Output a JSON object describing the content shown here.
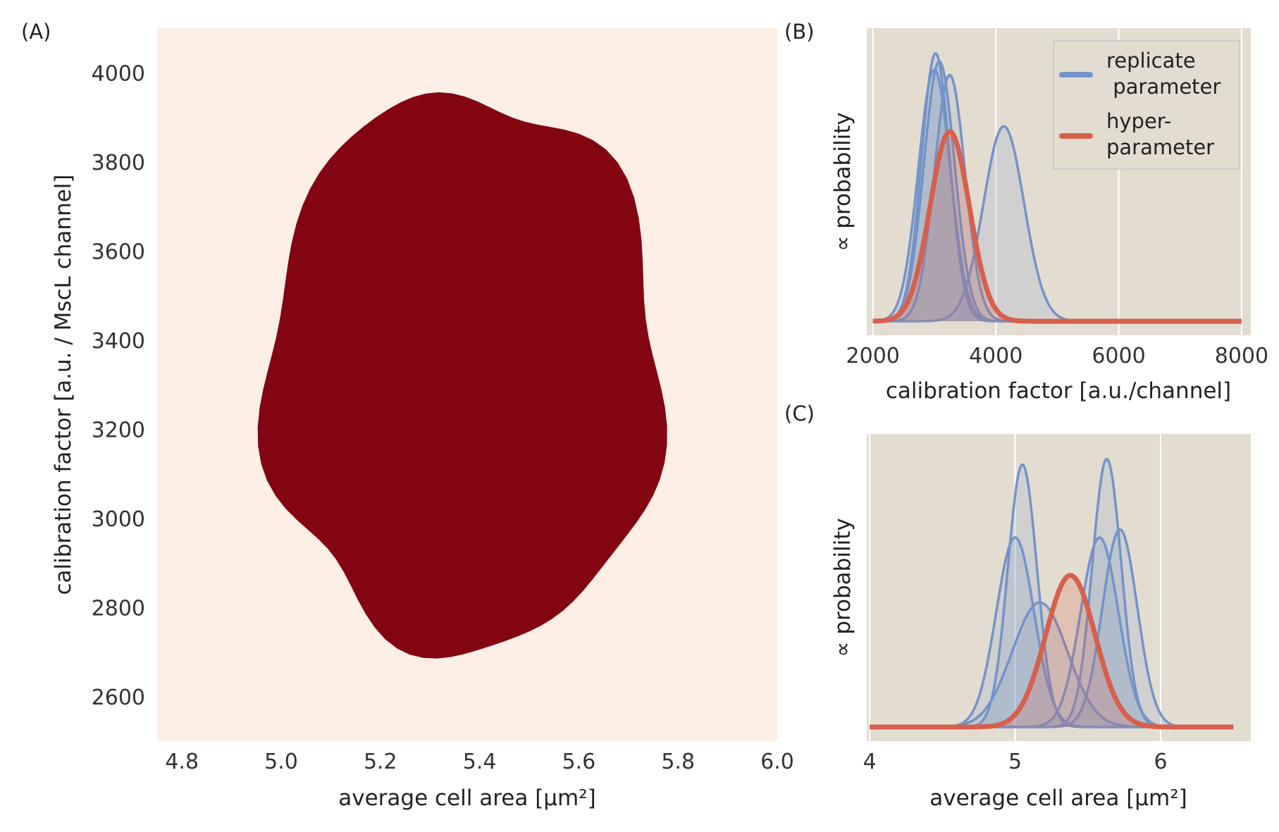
{
  "colors": {
    "replicate": "#7593c8",
    "hyper": "#d6604d",
    "panel_bg": "#e3ddd1",
    "kde_palette": [
      "#fdeee6",
      "#fcdccc",
      "#fcc2a8",
      "#fca586",
      "#fb8769",
      "#f6684d",
      "#ec4a37",
      "#d92b26",
      "#bd171c",
      "#a10f18",
      "#820511"
    ]
  },
  "chart_data": [
    {
      "panel_label": "(A)",
      "type": "contour",
      "xlabel": "average cell area [µm²]",
      "ylabel": "calibration factor [a.u. / MscL channel]",
      "xlim": [
        4.75,
        6.0
      ],
      "ylim": [
        2500,
        4100
      ],
      "xticks": [
        4.8,
        5.0,
        5.2,
        5.4,
        5.6,
        5.8,
        6.0
      ],
      "xtick_labels": [
        "4.8",
        "5.0",
        "5.2",
        "5.4",
        "5.6",
        "5.8",
        "6.0"
      ],
      "yticks": [
        2600,
        2800,
        3000,
        3200,
        3400,
        3600,
        3800,
        4000
      ],
      "ytick_labels": [
        "2600",
        "2800",
        "3000",
        "3200",
        "3400",
        "3600",
        "3800",
        "4000"
      ],
      "peak": {
        "x": 5.37,
        "y": 3290
      },
      "spread": {
        "sx": 0.16,
        "sy": 250
      },
      "levels": 10
    },
    {
      "panel_label": "(B)",
      "type": "line",
      "xlabel": "calibration factor [a.u./channel]",
      "ylabel": "∝ probability",
      "xlim": [
        1900,
        8150
      ],
      "ylim": [
        0,
        1.03
      ],
      "xticks": [
        2000,
        4000,
        6000,
        8000
      ],
      "xtick_labels": [
        "2000",
        "4000",
        "6000",
        "8000"
      ],
      "x_range": [
        2000,
        8000
      ],
      "legend": {
        "position": "top-right",
        "entries": [
          "replicate\n parameter",
          "hyper-\nparameter"
        ]
      },
      "series": [
        {
          "kind": "replicate",
          "mu": 3020,
          "sigma": 230,
          "peak": 0.99
        },
        {
          "kind": "replicate",
          "mu": 3080,
          "sigma": 250,
          "peak": 0.96
        },
        {
          "kind": "replicate",
          "mu": 3000,
          "sigma": 260,
          "peak": 0.93
        },
        {
          "kind": "replicate",
          "mu": 3250,
          "sigma": 250,
          "peak": 0.91
        },
        {
          "kind": "replicate",
          "mu": 4130,
          "sigma": 330,
          "peak": 0.72
        },
        {
          "kind": "hyper",
          "mu": 3250,
          "sigma": 320,
          "peak": 0.7
        }
      ]
    },
    {
      "panel_label": "(C)",
      "type": "line",
      "xlabel": "average cell area [µm²]",
      "ylabel": "∝ probability",
      "xlim": [
        3.98,
        6.62
      ],
      "ylim": [
        0,
        1.03
      ],
      "xticks": [
        4,
        5,
        6
      ],
      "xtick_labels": [
        "4",
        "5",
        "6"
      ],
      "x_range": [
        4.0,
        6.5
      ],
      "series": [
        {
          "kind": "replicate",
          "mu": 5.05,
          "sigma": 0.1,
          "peak": 0.97
        },
        {
          "kind": "replicate",
          "mu": 5.0,
          "sigma": 0.13,
          "peak": 0.7
        },
        {
          "kind": "replicate",
          "mu": 5.17,
          "sigma": 0.19,
          "peak": 0.46
        },
        {
          "kind": "replicate",
          "mu": 5.63,
          "sigma": 0.1,
          "peak": 0.99
        },
        {
          "kind": "replicate",
          "mu": 5.58,
          "sigma": 0.13,
          "peak": 0.7
        },
        {
          "kind": "replicate",
          "mu": 5.72,
          "sigma": 0.12,
          "peak": 0.73
        },
        {
          "kind": "hyper",
          "mu": 5.38,
          "sigma": 0.17,
          "peak": 0.56
        }
      ]
    }
  ]
}
